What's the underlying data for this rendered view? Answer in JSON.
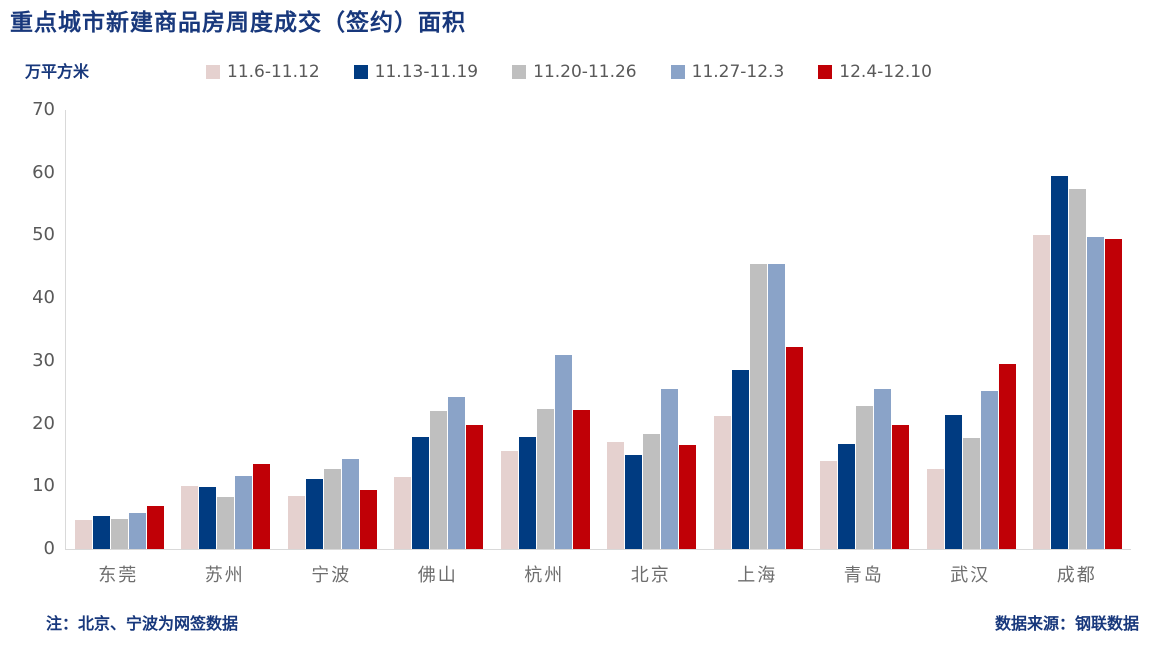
{
  "title": "重点城市新建商品房周度成交（签约）面积",
  "unit_label": "万平方米",
  "note_left": "注：北京、宁波为网签数据",
  "source_right": "数据来源：钢联数据",
  "colors": {
    "title_blue": "#18387c",
    "axis_text_gray": "#595959",
    "city_label_gray": "#6e6e6e",
    "axis_line_gray": "#d9d9d9",
    "background": "#ffffff"
  },
  "chart_data": {
    "type": "bar",
    "title": "重点城市新建商品房周度成交（签约）面积",
    "ylabel": "万平方米",
    "xlabel": "",
    "ylim": [
      0,
      70
    ],
    "ytick_step": 10,
    "grid": false,
    "legend_position": "top",
    "categories": [
      "东莞",
      "苏州",
      "宁波",
      "佛山",
      "杭州",
      "北京",
      "上海",
      "青岛",
      "武汉",
      "成都"
    ],
    "series": [
      {
        "name": "11.6-11.12",
        "color": "#e5d1cf",
        "values": [
          4.7,
          10.1,
          8.5,
          11.5,
          15.6,
          17.0,
          21.2,
          14.0,
          12.8,
          50.1
        ]
      },
      {
        "name": "11.13-11.19",
        "color": "#003b81",
        "values": [
          5.2,
          9.9,
          11.2,
          17.9,
          17.9,
          15.0,
          28.5,
          16.8,
          21.3,
          59.5
        ]
      },
      {
        "name": "11.20-11.26",
        "color": "#bfbfbf",
        "values": [
          4.8,
          8.3,
          12.7,
          22.0,
          22.4,
          18.4,
          45.4,
          22.8,
          17.7,
          57.4
        ]
      },
      {
        "name": "11.27-12.3",
        "color": "#8aa3c8",
        "values": [
          5.7,
          11.7,
          14.3,
          24.2,
          31.0,
          25.5,
          45.4,
          25.5,
          25.2,
          49.7
        ]
      },
      {
        "name": "12.4-12.10",
        "color": "#c00006",
        "values": [
          6.9,
          13.6,
          9.4,
          19.8,
          22.2,
          16.6,
          32.2,
          19.8,
          29.5,
          49.5
        ]
      }
    ]
  }
}
